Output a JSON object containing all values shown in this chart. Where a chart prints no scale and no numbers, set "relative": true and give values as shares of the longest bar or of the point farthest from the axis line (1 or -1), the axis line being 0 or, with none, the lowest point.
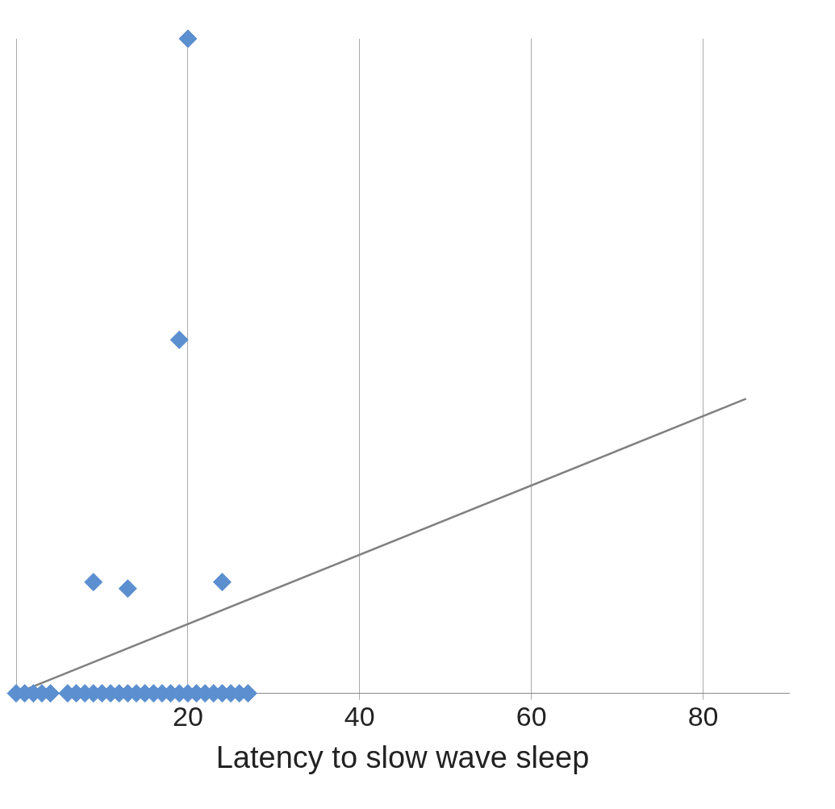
{
  "chart_data": {
    "type": "scatter",
    "xlabel": "Latency to slow wave sleep",
    "relative": true,
    "xlim": [
      0,
      90
    ],
    "xticks": [
      {
        "value": 0,
        "label": null
      },
      20,
      40,
      60,
      80
    ],
    "grid": "x",
    "legend": false,
    "series": [
      {
        "color": "#5b8fd0",
        "marker": "diamond",
        "x": [
          0,
          1,
          2,
          3,
          4,
          6,
          7,
          8,
          9,
          10,
          11,
          12,
          13,
          14,
          15,
          16,
          17,
          18,
          19,
          20,
          21,
          22,
          23,
          24,
          25,
          26,
          27,
          9,
          13,
          24,
          19,
          20
        ],
        "values": [
          0,
          0,
          0,
          0,
          0,
          0,
          0,
          0,
          0,
          0,
          0,
          0,
          0,
          0,
          0,
          0,
          0,
          0,
          0,
          0,
          0,
          0,
          0,
          0,
          0,
          0,
          0,
          0.17,
          0.16,
          0.17,
          0.54,
          1
        ]
      },
      {
        "type": "line",
        "marker": "none",
        "color": "#808080",
        "x": [
          0,
          85
        ],
        "values": [
          0,
          0.45
        ]
      }
    ]
  }
}
